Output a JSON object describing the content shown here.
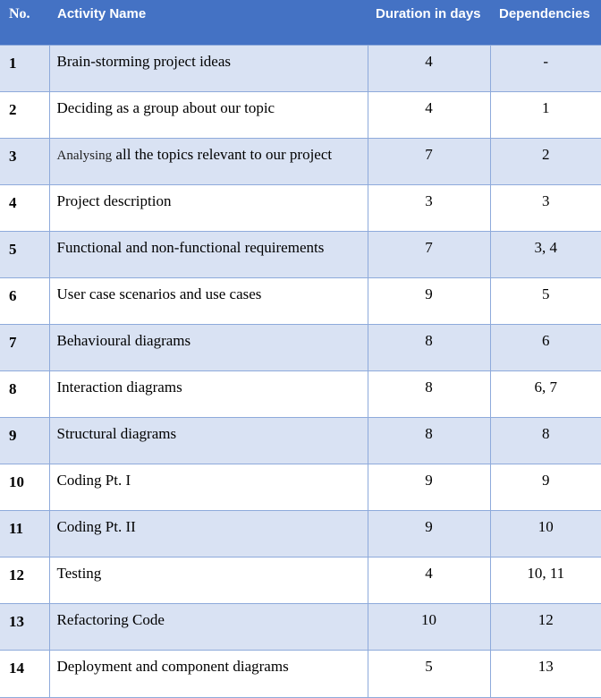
{
  "table": {
    "headers": {
      "no": "No.",
      "activity": "Activity Name",
      "duration": "Duration in days",
      "dependencies": "Dependencies"
    },
    "rows": [
      {
        "no": "1",
        "name": "Brain-storming project ideas",
        "duration": "4",
        "deps": "-"
      },
      {
        "no": "2",
        "name": "Deciding as a group about our topic",
        "duration": "4",
        "deps": "1"
      },
      {
        "no": "3",
        "name_prefix": "Analysing",
        "name": " all the topics relevant to our project",
        "duration": "7",
        "deps": "2"
      },
      {
        "no": "4",
        "name": "Project description",
        "duration": "3",
        "deps": "3"
      },
      {
        "no": "5",
        "name": "Functional and non-functional requirements",
        "duration": "7",
        "deps": "3, 4"
      },
      {
        "no": "6",
        "name": "User case scenarios and use cases",
        "duration": "9",
        "deps": "5"
      },
      {
        "no": "7",
        "name": "Behavioural diagrams",
        "duration": "8",
        "deps": "6"
      },
      {
        "no": "8",
        "name": "Interaction diagrams",
        "duration": "8",
        "deps": "6, 7"
      },
      {
        "no": "9",
        "name": "Structural diagrams",
        "duration": "8",
        "deps": "8"
      },
      {
        "no": "10",
        "name": "Coding Pt. I",
        "duration": "9",
        "deps": "9"
      },
      {
        "no": "11",
        "name": "Coding Pt. II",
        "duration": "9",
        "deps": "10"
      },
      {
        "no": "12",
        "name": "Testing",
        "duration": "4",
        "deps": "10, 11"
      },
      {
        "no": "13",
        "name": "Refactoring Code",
        "duration": "10",
        "deps": "12"
      },
      {
        "no": "14",
        "name": "Deployment and component diagrams",
        "duration": "5",
        "deps": "13"
      }
    ]
  }
}
